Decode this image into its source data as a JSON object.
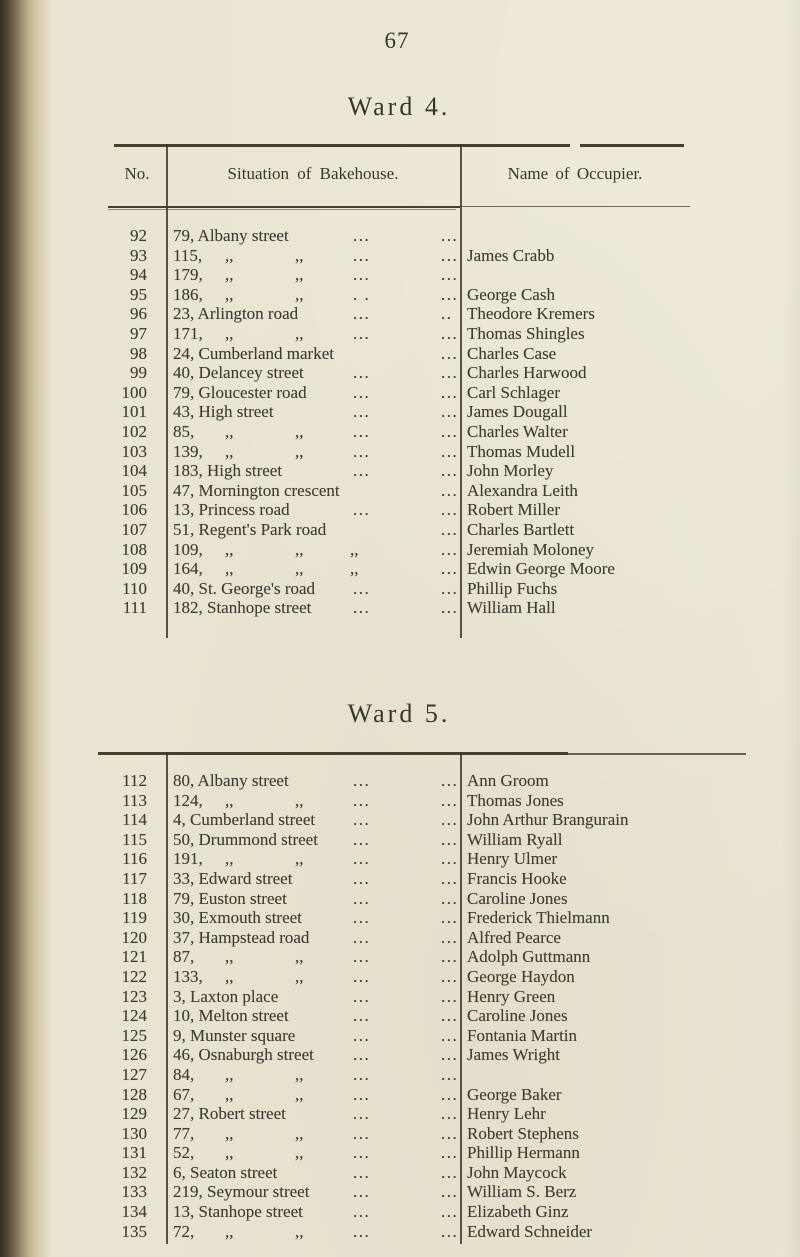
{
  "page": {
    "number": "67"
  },
  "colors": {
    "paper": "#eae4d2",
    "ink": "#423d33",
    "rule": "#443f31",
    "spine_dark": "#35301f"
  },
  "tables": [
    {
      "title": "Ward 4.",
      "headers": {
        "no": "No.",
        "situation": "Situation of Bakehouse.",
        "name": "Name of Occupier."
      },
      "rows": [
        {
          "no": "92",
          "addr": "79, Albany street",
          "dittos": [],
          "leaders": [
            "...",
            "..."
          ],
          "name": ""
        },
        {
          "no": "93",
          "addr": "115,",
          "dittos": [
            ",,",
            ",,"
          ],
          "leaders": [
            "...",
            "..."
          ],
          "name": "James Crabb"
        },
        {
          "no": "94",
          "addr": "179,",
          "dittos": [
            ",,",
            ",,"
          ],
          "leaders": [
            "...",
            "..."
          ],
          "name": ""
        },
        {
          "no": "95",
          "addr": "186,",
          "dittos": [
            ",,",
            ",,"
          ],
          "leaders": [
            ". .",
            "..."
          ],
          "name": "George Cash"
        },
        {
          "no": "96",
          "addr": "23, Arlington road",
          "dittos": [],
          "leaders": [
            "...",
            ".."
          ],
          "name": "Theodore Kremers"
        },
        {
          "no": "97",
          "addr": "171,",
          "dittos": [
            ",,",
            ",,"
          ],
          "leaders": [
            "...",
            "..."
          ],
          "name": "Thomas Shingles"
        },
        {
          "no": "98",
          "addr": "24, Cumberland market",
          "dittos": [],
          "leaders": [
            "",
            "..."
          ],
          "name": "Charles Case"
        },
        {
          "no": "99",
          "addr": "40, Delancey street",
          "dittos": [],
          "leaders": [
            "...",
            "..."
          ],
          "name": "Charles Harwood"
        },
        {
          "no": "100",
          "addr": "79, Gloucester road",
          "dittos": [],
          "leaders": [
            "...",
            "..."
          ],
          "name": "Carl Schlager"
        },
        {
          "no": "101",
          "addr": "43, High street",
          "dittos": [],
          "leaders": [
            "...",
            "..."
          ],
          "name": "James Dougall"
        },
        {
          "no": "102",
          "addr": "85,",
          "dittos": [
            ",,",
            ",,"
          ],
          "leaders": [
            "...",
            "..."
          ],
          "name": "Charles Walter"
        },
        {
          "no": "103",
          "addr": "139,",
          "dittos": [
            ",,",
            ",,"
          ],
          "leaders": [
            "...",
            "..."
          ],
          "name": "Thomas Mudell"
        },
        {
          "no": "104",
          "addr": "183, High street",
          "dittos": [],
          "leaders": [
            "...",
            "..."
          ],
          "name": "John Morley"
        },
        {
          "no": "105",
          "addr": "47, Mornington crescent",
          "dittos": [],
          "leaders": [
            "",
            "..."
          ],
          "name": "Alexandra Leith"
        },
        {
          "no": "106",
          "addr": "13, Princess road",
          "dittos": [],
          "leaders": [
            "...",
            "..."
          ],
          "name": "Robert Miller"
        },
        {
          "no": "107",
          "addr": "51, Regent's Park road",
          "dittos": [],
          "leaders": [
            "",
            "..."
          ],
          "name": "Charles Bartlett"
        },
        {
          "no": "108",
          "addr": "109,",
          "dittos": [
            ",,",
            ",,",
            ",,"
          ],
          "leaders": [
            "",
            "..."
          ],
          "name": "Jeremiah Moloney"
        },
        {
          "no": "109",
          "addr": "164,",
          "dittos": [
            ",,",
            ",,",
            ",,"
          ],
          "leaders": [
            "",
            "..."
          ],
          "name": "Edwin George Moore"
        },
        {
          "no": "110",
          "addr": "40, St. George's road",
          "dittos": [],
          "leaders": [
            "...",
            "..."
          ],
          "name": "Phillip Fuchs"
        },
        {
          "no": "111",
          "addr": "182, Stanhope street",
          "dittos": [],
          "leaders": [
            "...",
            "..."
          ],
          "name": "William Hall"
        }
      ]
    },
    {
      "title": "Ward 5.",
      "rows": [
        {
          "no": "112",
          "addr": "80, Albany street",
          "dittos": [],
          "leaders": [
            "...",
            "..."
          ],
          "name": "Ann Groom"
        },
        {
          "no": "113",
          "addr": "124,",
          "dittos": [
            ",,",
            ",,"
          ],
          "leaders": [
            "...",
            "..."
          ],
          "name": "Thomas Jones"
        },
        {
          "no": "114",
          "addr": "4, Cumberland street",
          "dittos": [],
          "leaders": [
            "...",
            "..."
          ],
          "name": "John Arthur Brangurain"
        },
        {
          "no": "115",
          "addr": "50, Drummond street",
          "dittos": [],
          "leaders": [
            "...",
            "..."
          ],
          "name": "William Ryall"
        },
        {
          "no": "116",
          "addr": "191,",
          "dittos": [
            ",,",
            ",,"
          ],
          "leaders": [
            "...",
            "..."
          ],
          "name": "Henry Ulmer"
        },
        {
          "no": "117",
          "addr": "33, Edward street",
          "dittos": [],
          "leaders": [
            "...",
            "..."
          ],
          "name": "Francis Hooke"
        },
        {
          "no": "118",
          "addr": "79, Euston street",
          "dittos": [],
          "leaders": [
            "...",
            "..."
          ],
          "name": "Caroline Jones"
        },
        {
          "no": "119",
          "addr": "30, Exmouth street",
          "dittos": [],
          "leaders": [
            "...",
            "..."
          ],
          "name": "Frederick Thielmann"
        },
        {
          "no": "120",
          "addr": "37, Hampstead road",
          "dittos": [],
          "leaders": [
            "...",
            "..."
          ],
          "name": "Alfred Pearce"
        },
        {
          "no": "121",
          "addr": "87,",
          "dittos": [
            ",,",
            ",,"
          ],
          "leaders": [
            "...",
            "..."
          ],
          "name": "Adolph Guttmann"
        },
        {
          "no": "122",
          "addr": "133,",
          "dittos": [
            ",,",
            ",,"
          ],
          "leaders": [
            "...",
            "..."
          ],
          "name": "George Haydon"
        },
        {
          "no": "123",
          "addr": "3, Laxton place",
          "dittos": [],
          "leaders": [
            "...",
            "..."
          ],
          "name": "Henry Green"
        },
        {
          "no": "124",
          "addr": "10, Melton street",
          "dittos": [],
          "leaders": [
            "...",
            "..."
          ],
          "name": "Caroline Jones"
        },
        {
          "no": "125",
          "addr": "9, Munster square",
          "dittos": [],
          "leaders": [
            "...",
            "..."
          ],
          "name": "Fontania Martin"
        },
        {
          "no": "126",
          "addr": "46, Osnaburgh street",
          "dittos": [],
          "leaders": [
            "...",
            "..."
          ],
          "name": "James Wright"
        },
        {
          "no": "127",
          "addr": "84,",
          "dittos": [
            ",,",
            ",,"
          ],
          "leaders": [
            "...",
            "..."
          ],
          "name": ""
        },
        {
          "no": "128",
          "addr": "67,",
          "dittos": [
            ",,",
            ",,"
          ],
          "leaders": [
            "...",
            "..."
          ],
          "name": "George Baker"
        },
        {
          "no": "129",
          "addr": "27, Robert street",
          "dittos": [],
          "leaders": [
            "...",
            "..."
          ],
          "name": "Henry Lehr"
        },
        {
          "no": "130",
          "addr": "77,",
          "dittos": [
            ",,",
            ",,"
          ],
          "leaders": [
            "...",
            "..."
          ],
          "name": "Robert Stephens"
        },
        {
          "no": "131",
          "addr": "52,",
          "dittos": [
            ",,",
            ",,"
          ],
          "leaders": [
            "...",
            "..."
          ],
          "name": "Phillip Hermann"
        },
        {
          "no": "132",
          "addr": "6, Seaton street",
          "dittos": [],
          "leaders": [
            "...",
            "..."
          ],
          "name": "John Maycock"
        },
        {
          "no": "133",
          "addr": "219, Seymour street",
          "dittos": [],
          "leaders": [
            "...",
            "..."
          ],
          "name": "William S. Berz"
        },
        {
          "no": "134",
          "addr": "13, Stanhope street",
          "dittos": [],
          "leaders": [
            "...",
            "..."
          ],
          "name": "Elizabeth Ginz"
        },
        {
          "no": "135",
          "addr": "72,",
          "dittos": [
            ",,",
            ",,"
          ],
          "leaders": [
            "...",
            "..."
          ],
          "name": "Edward Schneider"
        }
      ]
    }
  ]
}
